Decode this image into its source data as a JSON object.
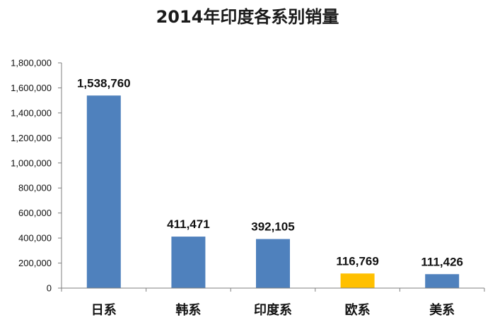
{
  "chart_data": {
    "type": "bar",
    "title": "2014年印度各系别销量",
    "xlabel": "",
    "ylabel": "",
    "categories": [
      "日系",
      "韩系",
      "印度系",
      "欧系",
      "美系"
    ],
    "values": [
      1538760,
      411471,
      392105,
      116769,
      111426
    ],
    "data_labels": [
      "1,538,760",
      "411,471",
      "392,105",
      "116,769",
      "111,426"
    ],
    "bar_colors": [
      "#4f81bd",
      "#4f81bd",
      "#4f81bd",
      "#ffc000",
      "#4f81bd"
    ],
    "ylim": [
      0,
      1800000
    ],
    "yticks": [
      0,
      200000,
      400000,
      600000,
      800000,
      1000000,
      1200000,
      1400000,
      1600000,
      1800000
    ],
    "ytick_labels": [
      "0",
      "200,000",
      "400,000",
      "600,000",
      "800,000",
      "1,000,000",
      "1,200,000",
      "1,400,000",
      "1,600,000",
      "1,800,000"
    ],
    "grid": false,
    "legend": "none"
  }
}
